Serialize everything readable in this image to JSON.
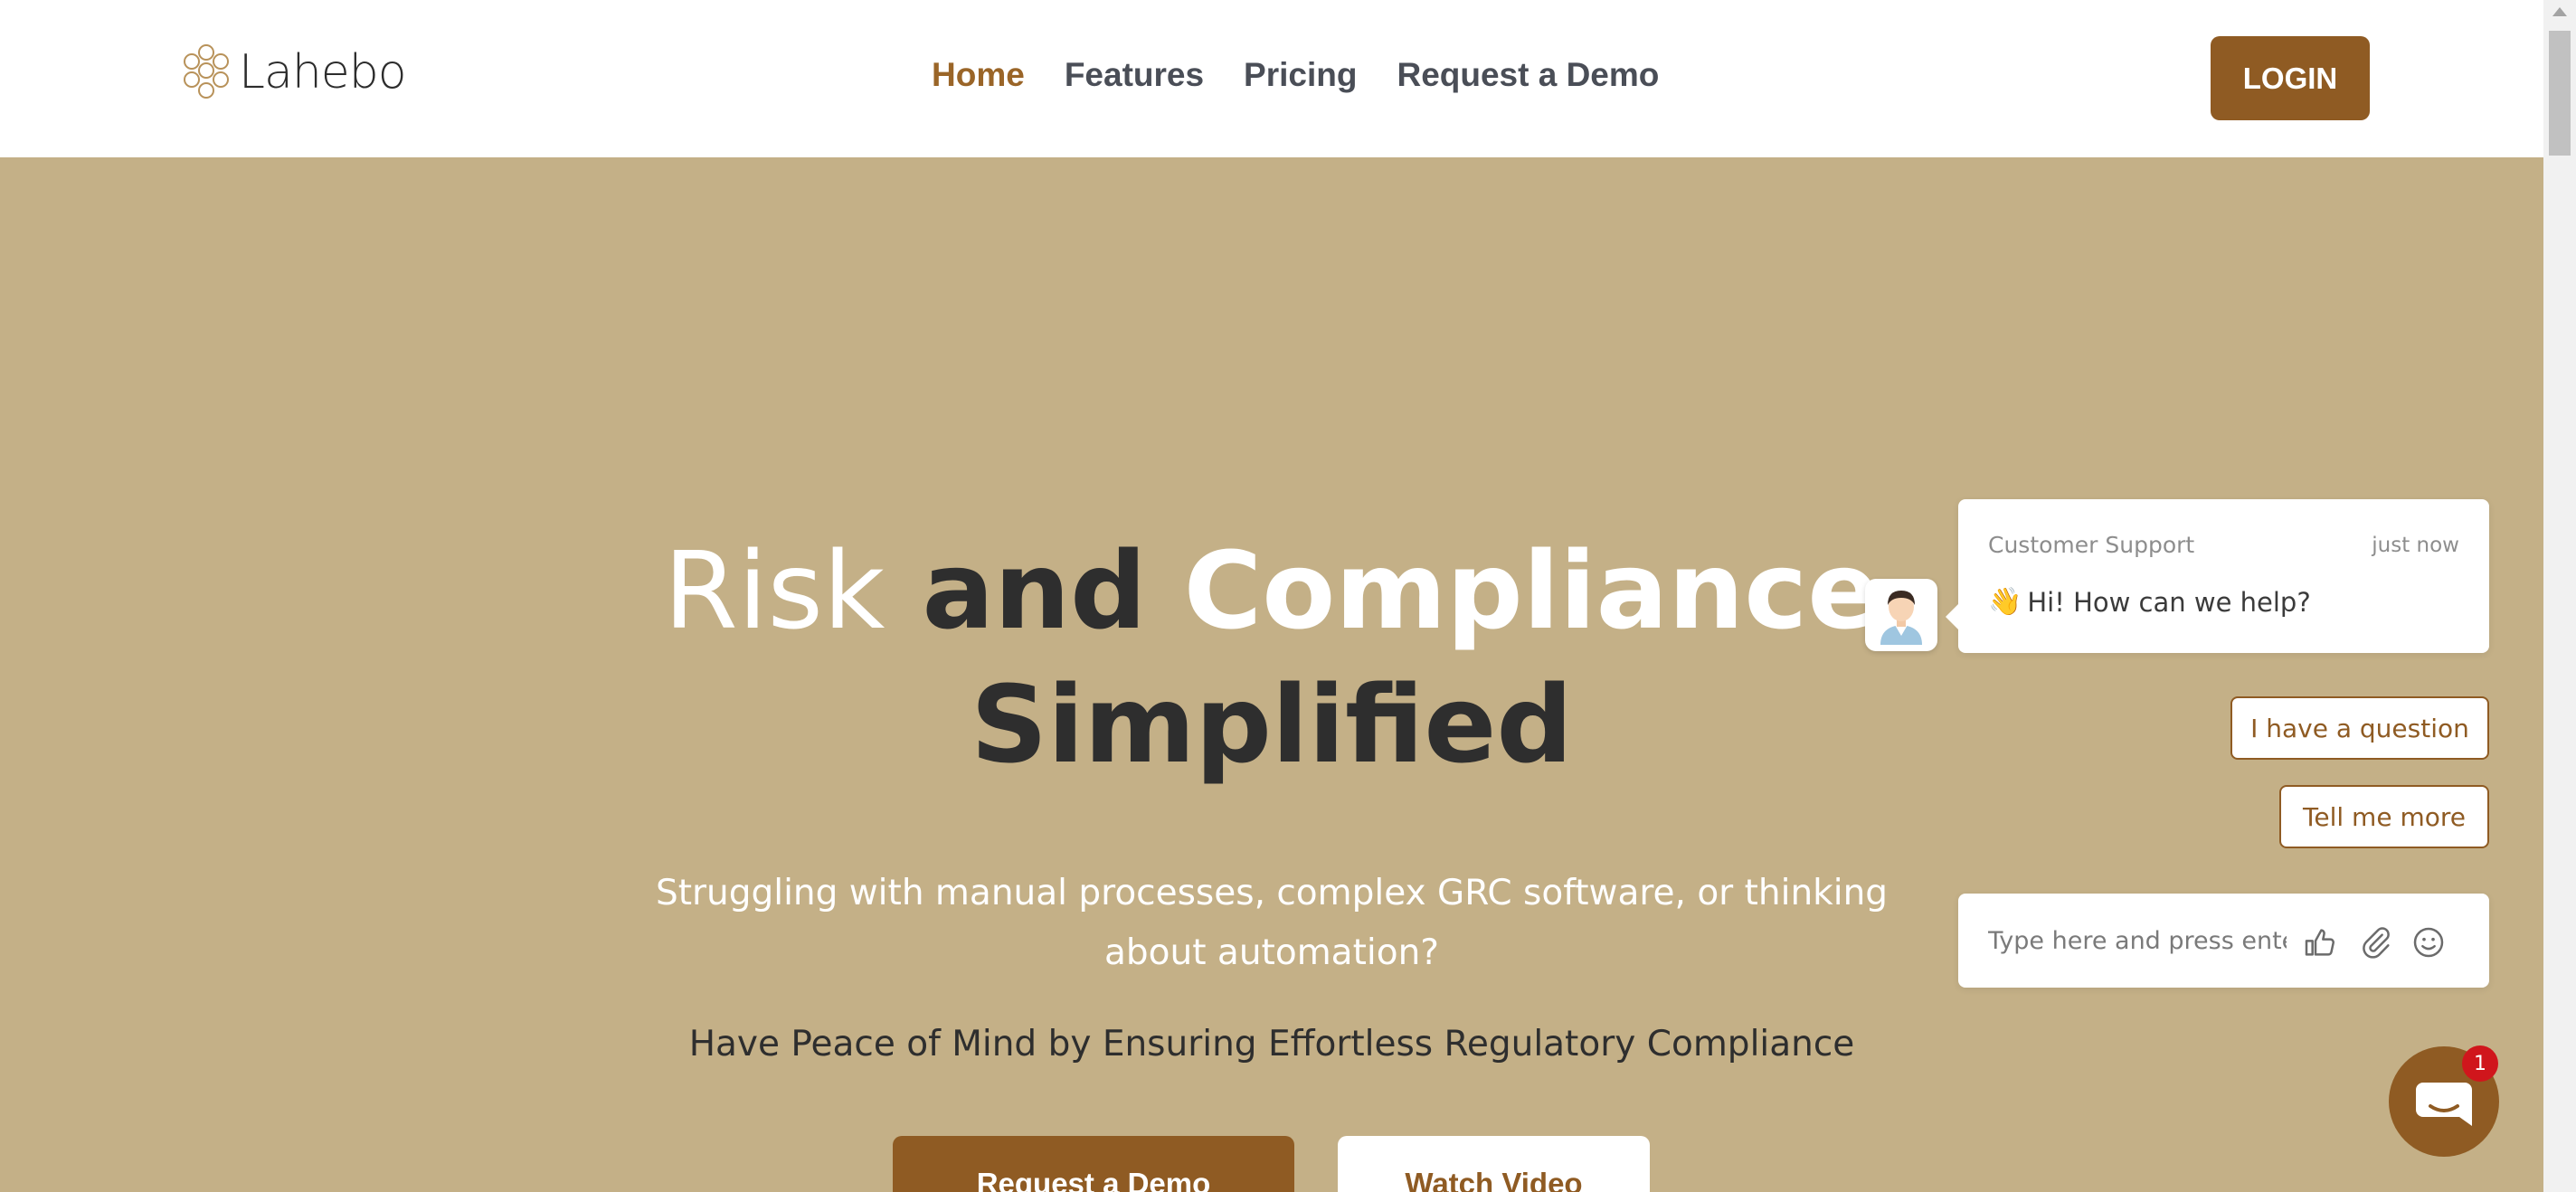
{
  "brand": {
    "name": "Lahebo",
    "accent_color": "#8f5b23",
    "hero_background": "#c4b087"
  },
  "nav": {
    "items": [
      {
        "label": "Home",
        "active": true
      },
      {
        "label": "Features",
        "active": false
      },
      {
        "label": "Pricing",
        "active": false
      },
      {
        "label": "Request a Demo",
        "active": false
      }
    ],
    "login_label": "LOGIN"
  },
  "hero": {
    "title_word_1": "Risk",
    "title_word_2": "and",
    "title_word_3": "Compliance",
    "title_line_2": "Simplified",
    "subtitle": "Struggling with manual processes, complex GRC software, or thinking about automation?",
    "tagline": "Have Peace of Mind by Ensuring Effortless Regulatory Compliance",
    "primary_cta": "Request a Demo",
    "secondary_cta": "Watch Video"
  },
  "chat": {
    "sender": "Customer Support",
    "time": "just now",
    "message": "Hi! How can we help?",
    "message_emoji": "👋",
    "quick_replies": [
      "I have a question",
      "Tell me more"
    ],
    "input_placeholder": "Type here and press enter..",
    "icons": [
      "thumbs-up-icon",
      "paperclip-icon",
      "smile-icon"
    ],
    "unread_count": "1"
  }
}
